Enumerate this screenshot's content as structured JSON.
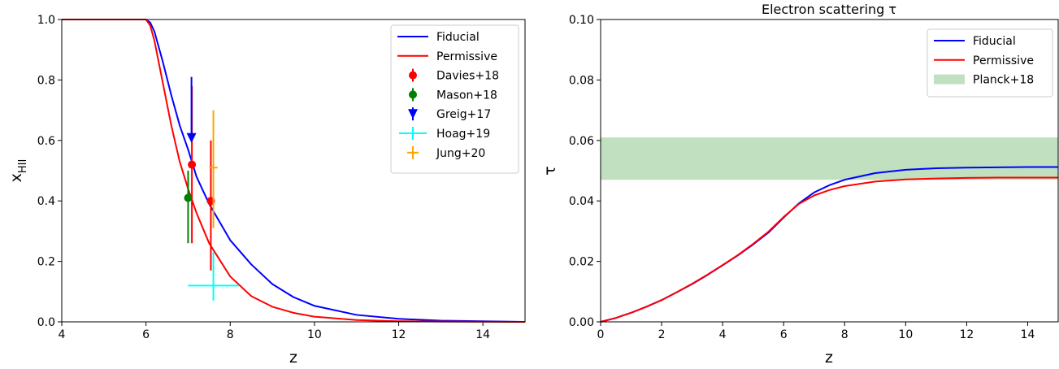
{
  "chart_data": [
    {
      "type": "line",
      "title": "",
      "xlabel": "z",
      "ylabel": "x",
      "ylabel_sub": "HII",
      "xlim": [
        4,
        15
      ],
      "ylim": [
        0,
        1
      ],
      "xticks": [
        "4",
        "6",
        "8",
        "10",
        "12",
        "14"
      ],
      "yticks": [
        "0.0",
        "0.2",
        "0.4",
        "0.6",
        "0.8",
        "1.0"
      ],
      "legend_position": "top-right",
      "grid": false,
      "series": [
        {
          "name": "Fiducial",
          "color": "#0000ff",
          "x": [
            4,
            5,
            6,
            6.1,
            6.2,
            6.4,
            6.6,
            6.8,
            7.0,
            7.2,
            7.5,
            8.0,
            8.5,
            9.0,
            9.5,
            10,
            11,
            12,
            13,
            15
          ],
          "y": [
            1,
            1,
            1,
            0.99,
            0.96,
            0.86,
            0.75,
            0.65,
            0.57,
            0.48,
            0.39,
            0.27,
            0.19,
            0.125,
            0.082,
            0.053,
            0.023,
            0.01,
            0.004,
            0.0
          ]
        },
        {
          "name": "Permissive",
          "color": "#ff0000",
          "x": [
            4,
            5,
            6,
            6.1,
            6.2,
            6.4,
            6.6,
            6.8,
            7.0,
            7.2,
            7.5,
            8.0,
            8.5,
            9.0,
            9.5,
            10,
            11,
            12,
            13,
            15
          ],
          "y": [
            1,
            1,
            1,
            0.98,
            0.93,
            0.79,
            0.65,
            0.53,
            0.44,
            0.36,
            0.26,
            0.15,
            0.085,
            0.05,
            0.03,
            0.017,
            0.006,
            0.002,
            0.001,
            0.0
          ]
        }
      ],
      "points": [
        {
          "name": "Davies+18",
          "color": "#ff0000",
          "marker": "circle",
          "data": [
            {
              "x": 7.09,
              "y": 0.52,
              "ylo": 0.26,
              "yhi": 0.78
            },
            {
              "x": 7.54,
              "y": 0.4,
              "ylo": 0.17,
              "yhi": 0.6
            }
          ]
        },
        {
          "name": "Mason+18",
          "color": "#008000",
          "marker": "circle",
          "data": [
            {
              "x": 7.0,
              "y": 0.41,
              "ylo": 0.26,
              "yhi": 0.5
            }
          ]
        },
        {
          "name": "Greig+17",
          "color": "#0000ff",
          "marker": "triangle-down",
          "data": [
            {
              "x": 7.08,
              "y": 0.6,
              "ylo": 0.6,
              "yhi": 0.81
            }
          ]
        },
        {
          "name": "Hoag+19",
          "color": "#00ffff",
          "marker": "plus",
          "data": [
            {
              "x": 7.6,
              "y": 0.12,
              "ylo": 0.07,
              "yhi": 0.23,
              "xlo": 7.0,
              "xhi": 8.2
            }
          ]
        },
        {
          "name": "Jung+20",
          "color": "#ffa500",
          "marker": "plus",
          "data": [
            {
              "x": 7.6,
              "y": 0.51,
              "ylo": 0.31,
              "yhi": 0.7,
              "xlo": 7.5,
              "xhi": 7.7
            }
          ]
        }
      ]
    },
    {
      "type": "line",
      "title": "Electron scattering τ",
      "xlabel": "z",
      "ylabel": "τ",
      "xlim": [
        0,
        15
      ],
      "ylim": [
        0,
        0.1
      ],
      "xticks": [
        "0",
        "2",
        "4",
        "6",
        "8",
        "10",
        "12",
        "14"
      ],
      "yticks": [
        "0.00",
        "0.02",
        "0.04",
        "0.06",
        "0.08",
        "0.10"
      ],
      "legend_position": "top-right",
      "grid": false,
      "series": [
        {
          "name": "Fiducial",
          "color": "#0000ff",
          "x": [
            0,
            0.5,
            1,
            1.5,
            2,
            2.5,
            3,
            3.5,
            4,
            4.5,
            5,
            5.5,
            6,
            6.5,
            7,
            7.5,
            8,
            9,
            10,
            11,
            12,
            13,
            14,
            15
          ],
          "y": [
            0,
            0.0013,
            0.003,
            0.005,
            0.0072,
            0.0098,
            0.0125,
            0.0155,
            0.0187,
            0.022,
            0.0256,
            0.0295,
            0.0345,
            0.0392,
            0.0428,
            0.0452,
            0.047,
            0.0492,
            0.0503,
            0.0508,
            0.051,
            0.0511,
            0.0512,
            0.0512
          ]
        },
        {
          "name": "Permissive",
          "color": "#ff0000",
          "x": [
            0,
            0.5,
            1,
            1.5,
            2,
            2.5,
            3,
            3.5,
            4,
            4.5,
            5,
            5.5,
            6,
            6.5,
            7,
            7.5,
            8,
            9,
            10,
            11,
            12,
            13,
            14,
            15
          ],
          "y": [
            0,
            0.0013,
            0.003,
            0.005,
            0.0072,
            0.0098,
            0.0126,
            0.0156,
            0.0188,
            0.0221,
            0.0258,
            0.0298,
            0.0347,
            0.039,
            0.0418,
            0.0436,
            0.0449,
            0.0464,
            0.0471,
            0.0474,
            0.0476,
            0.0477,
            0.0477,
            0.0477
          ]
        }
      ],
      "bands": [
        {
          "name": "Planck+18",
          "color": "#c0e0bf",
          "ylo": 0.047,
          "yhi": 0.061
        }
      ]
    }
  ]
}
